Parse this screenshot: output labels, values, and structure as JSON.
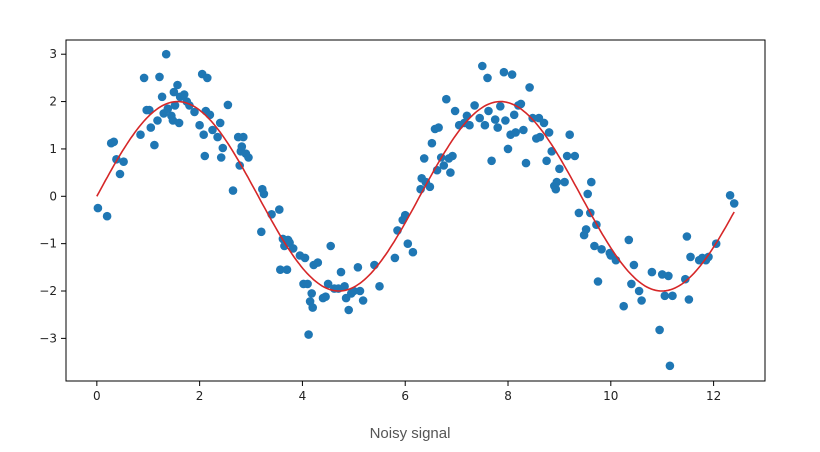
{
  "caption": "Noisy signal",
  "colors": {
    "points": "#1f77b4",
    "fit": "#d62728",
    "axes": "#000000"
  },
  "chart_data": {
    "type": "scatter",
    "title": "",
    "xlabel": "",
    "ylabel": "",
    "xlim": [
      -0.6,
      13.0
    ],
    "ylim": [
      -3.9,
      3.3
    ],
    "xticks": [
      0,
      2,
      4,
      6,
      8,
      10,
      12
    ],
    "yticks": [
      3,
      2,
      1,
      0,
      -1,
      -2,
      -3
    ],
    "grid": false,
    "legend": "none",
    "series": [
      {
        "kind": "scatter",
        "color": "#1f77b4",
        "points": [
          [
            0.02,
            -0.25
          ],
          [
            0.2,
            -0.42
          ],
          [
            0.28,
            1.12
          ],
          [
            0.33,
            1.15
          ],
          [
            0.38,
            0.78
          ],
          [
            0.45,
            0.47
          ],
          [
            0.52,
            0.73
          ],
          [
            0.85,
            1.3
          ],
          [
            0.92,
            2.5
          ],
          [
            0.97,
            1.82
          ],
          [
            1.02,
            1.82
          ],
          [
            1.05,
            1.45
          ],
          [
            1.12,
            1.08
          ],
          [
            1.18,
            1.6
          ],
          [
            1.22,
            2.52
          ],
          [
            1.27,
            2.1
          ],
          [
            1.3,
            1.75
          ],
          [
            1.35,
            3.0
          ],
          [
            1.38,
            1.85
          ],
          [
            1.45,
            1.7
          ],
          [
            1.48,
            1.6
          ],
          [
            1.5,
            2.2
          ],
          [
            1.52,
            1.92
          ],
          [
            1.57,
            2.35
          ],
          [
            1.6,
            1.55
          ],
          [
            1.62,
            2.1
          ],
          [
            1.7,
            2.15
          ],
          [
            1.75,
            2.0
          ],
          [
            1.8,
            1.92
          ],
          [
            1.9,
            1.78
          ],
          [
            2.0,
            1.5
          ],
          [
            2.05,
            2.58
          ],
          [
            2.08,
            1.3
          ],
          [
            2.1,
            0.85
          ],
          [
            2.12,
            1.8
          ],
          [
            2.15,
            2.5
          ],
          [
            2.2,
            1.72
          ],
          [
            2.25,
            1.4
          ],
          [
            2.35,
            1.25
          ],
          [
            2.4,
            1.55
          ],
          [
            2.42,
            0.82
          ],
          [
            2.45,
            1.02
          ],
          [
            2.55,
            1.93
          ],
          [
            2.65,
            0.12
          ],
          [
            2.75,
            1.25
          ],
          [
            2.78,
            0.65
          ],
          [
            2.8,
            0.95
          ],
          [
            2.82,
            1.05
          ],
          [
            2.85,
            1.25
          ],
          [
            2.9,
            0.9
          ],
          [
            2.95,
            0.82
          ],
          [
            3.2,
            -0.75
          ],
          [
            3.22,
            0.15
          ],
          [
            3.25,
            0.05
          ],
          [
            3.4,
            -0.38
          ],
          [
            3.55,
            -0.28
          ],
          [
            3.57,
            -1.55
          ],
          [
            3.62,
            -0.9
          ],
          [
            3.65,
            -1.05
          ],
          [
            3.7,
            -1.55
          ],
          [
            3.72,
            -0.92
          ],
          [
            3.75,
            -0.98
          ],
          [
            3.82,
            -1.1
          ],
          [
            3.95,
            -1.25
          ],
          [
            4.02,
            -1.85
          ],
          [
            4.05,
            -1.3
          ],
          [
            4.1,
            -1.85
          ],
          [
            4.12,
            -2.92
          ],
          [
            4.15,
            -2.22
          ],
          [
            4.18,
            -2.05
          ],
          [
            4.2,
            -2.35
          ],
          [
            4.22,
            -1.45
          ],
          [
            4.3,
            -1.4
          ],
          [
            4.4,
            -2.15
          ],
          [
            4.45,
            -2.12
          ],
          [
            4.5,
            -1.85
          ],
          [
            4.55,
            -1.05
          ],
          [
            4.62,
            -1.95
          ],
          [
            4.7,
            -1.95
          ],
          [
            4.75,
            -1.6
          ],
          [
            4.82,
            -1.9
          ],
          [
            4.85,
            -2.15
          ],
          [
            4.9,
            -2.4
          ],
          [
            4.95,
            -2.05
          ],
          [
            5.0,
            -2.0
          ],
          [
            5.08,
            -1.5
          ],
          [
            5.12,
            -2.0
          ],
          [
            5.18,
            -2.2
          ],
          [
            5.4,
            -1.45
          ],
          [
            5.5,
            -1.9
          ],
          [
            5.8,
            -1.3
          ],
          [
            5.85,
            -0.72
          ],
          [
            5.95,
            -0.5
          ],
          [
            6.0,
            -0.4
          ],
          [
            6.05,
            -1.0
          ],
          [
            6.15,
            -1.18
          ],
          [
            6.3,
            0.15
          ],
          [
            6.32,
            0.38
          ],
          [
            6.37,
            0.8
          ],
          [
            6.4,
            0.3
          ],
          [
            6.48,
            0.2
          ],
          [
            6.52,
            1.12
          ],
          [
            6.58,
            1.42
          ],
          [
            6.62,
            0.55
          ],
          [
            6.65,
            1.45
          ],
          [
            6.7,
            0.82
          ],
          [
            6.75,
            0.65
          ],
          [
            6.8,
            2.05
          ],
          [
            6.85,
            0.8
          ],
          [
            6.88,
            0.5
          ],
          [
            6.92,
            0.85
          ],
          [
            6.97,
            1.8
          ],
          [
            7.05,
            1.5
          ],
          [
            7.15,
            1.55
          ],
          [
            7.2,
            1.7
          ],
          [
            7.25,
            1.5
          ],
          [
            7.35,
            1.92
          ],
          [
            7.45,
            1.65
          ],
          [
            7.5,
            2.75
          ],
          [
            7.55,
            1.5
          ],
          [
            7.6,
            2.5
          ],
          [
            7.62,
            1.8
          ],
          [
            7.68,
            0.75
          ],
          [
            7.75,
            1.62
          ],
          [
            7.8,
            1.45
          ],
          [
            7.85,
            1.9
          ],
          [
            7.92,
            2.62
          ],
          [
            7.95,
            1.6
          ],
          [
            8.0,
            1.0
          ],
          [
            8.05,
            1.3
          ],
          [
            8.08,
            2.57
          ],
          [
            8.12,
            1.72
          ],
          [
            8.15,
            1.35
          ],
          [
            8.2,
            1.92
          ],
          [
            8.25,
            1.95
          ],
          [
            8.3,
            1.4
          ],
          [
            8.35,
            0.7
          ],
          [
            8.42,
            2.3
          ],
          [
            8.48,
            1.65
          ],
          [
            8.55,
            1.22
          ],
          [
            8.6,
            1.65
          ],
          [
            8.62,
            1.25
          ],
          [
            8.7,
            1.55
          ],
          [
            8.75,
            0.75
          ],
          [
            8.8,
            1.35
          ],
          [
            8.85,
            0.95
          ],
          [
            8.9,
            0.22
          ],
          [
            8.93,
            0.15
          ],
          [
            8.95,
            0.3
          ],
          [
            9.0,
            0.58
          ],
          [
            9.1,
            0.3
          ],
          [
            9.15,
            0.85
          ],
          [
            9.2,
            1.3
          ],
          [
            9.3,
            0.85
          ],
          [
            9.38,
            -0.35
          ],
          [
            9.48,
            -0.82
          ],
          [
            9.52,
            -0.7
          ],
          [
            9.55,
            0.05
          ],
          [
            9.6,
            -0.35
          ],
          [
            9.62,
            0.3
          ],
          [
            9.68,
            -1.05
          ],
          [
            9.72,
            -0.6
          ],
          [
            9.75,
            -1.8
          ],
          [
            9.82,
            -1.12
          ],
          [
            9.98,
            -1.2
          ],
          [
            10.0,
            -1.25
          ],
          [
            10.1,
            -1.35
          ],
          [
            10.25,
            -2.32
          ],
          [
            10.35,
            -0.92
          ],
          [
            10.4,
            -1.85
          ],
          [
            10.45,
            -1.45
          ],
          [
            10.55,
            -2.0
          ],
          [
            10.6,
            -2.2
          ],
          [
            10.8,
            -1.6
          ],
          [
            10.95,
            -2.82
          ],
          [
            11.0,
            -1.65
          ],
          [
            11.05,
            -2.1
          ],
          [
            11.12,
            -1.68
          ],
          [
            11.15,
            -3.58
          ],
          [
            11.2,
            -2.1
          ],
          [
            11.45,
            -1.75
          ],
          [
            11.48,
            -0.85
          ],
          [
            11.52,
            -2.18
          ],
          [
            11.55,
            -1.28
          ],
          [
            11.72,
            -1.35
          ],
          [
            11.78,
            -1.3
          ],
          [
            11.85,
            -1.35
          ],
          [
            11.9,
            -1.28
          ],
          [
            12.05,
            -1.0
          ],
          [
            12.32,
            0.02
          ],
          [
            12.4,
            -0.15
          ]
        ]
      },
      {
        "kind": "line",
        "color": "#d62728",
        "function": "2*sin(x)",
        "x_range": [
          0.0,
          12.4
        ]
      }
    ]
  }
}
